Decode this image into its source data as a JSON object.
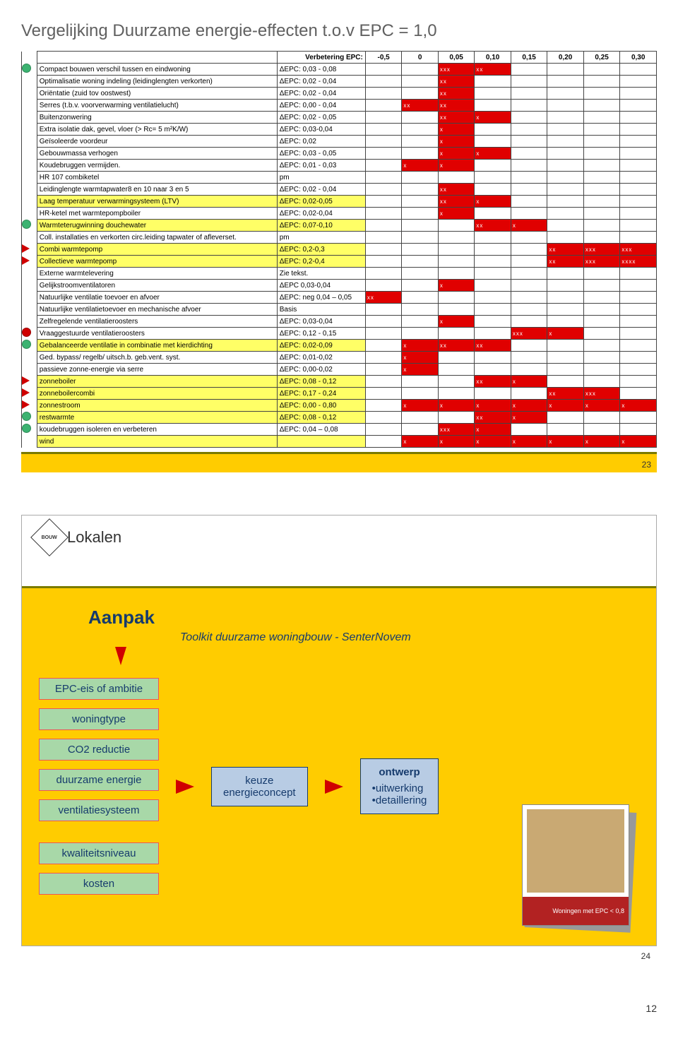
{
  "page_footer": "12",
  "slide1": {
    "title": "Vergelijking Duurzame energie-effecten t.o.v EPC = 1,0",
    "number": "23",
    "header_label": "Verbetering EPC:",
    "columns": [
      "-0,5",
      "0",
      "0,05",
      "0,10",
      "0,15",
      "0,20",
      "0,25",
      "0,30"
    ],
    "pink_col_index": 0,
    "rows": [
      {
        "marker": "green",
        "highlight": false,
        "desc": "Compact bouwen verschil tussen en eindwoning",
        "delta": "ΔEPC: 0,03 - 0,08",
        "bars": [
          0,
          0,
          3,
          2,
          0,
          0,
          0,
          0
        ]
      },
      {
        "marker": "",
        "highlight": false,
        "desc": "Optimalisatie woning indeling (leidinglengten verkorten)",
        "delta": "ΔEPC: 0,02 - 0,04",
        "bars": [
          0,
          0,
          2,
          0,
          0,
          0,
          0,
          0
        ]
      },
      {
        "marker": "",
        "highlight": false,
        "desc": "Oriëntatie (zuid tov oostwest)",
        "delta": "ΔEPC: 0,02 - 0,04",
        "bars": [
          0,
          0,
          2,
          0,
          0,
          0,
          0,
          0
        ]
      },
      {
        "marker": "",
        "highlight": false,
        "desc": "Serres (t.b.v. voorverwarming ventilatielucht)",
        "delta": "ΔEPC: 0,00 - 0,04",
        "bars": [
          0,
          2,
          2,
          0,
          0,
          0,
          0,
          0
        ]
      },
      {
        "marker": "",
        "highlight": false,
        "desc": "Buitenzonwering",
        "delta": "ΔEPC: 0,02 - 0,05",
        "bars": [
          0,
          0,
          2,
          1,
          0,
          0,
          0,
          0
        ]
      },
      {
        "marker": "",
        "highlight": false,
        "desc": "Extra isolatie dak, gevel, vloer (> Rc= 5 m²K/W)",
        "delta": "ΔEPC: 0,03-0,04",
        "bars": [
          0,
          0,
          1,
          0,
          0,
          0,
          0,
          0
        ]
      },
      {
        "marker": "",
        "highlight": false,
        "desc": "Geïsoleerde voordeur",
        "delta": "ΔEPC: 0,02",
        "bars": [
          0,
          0,
          1,
          0,
          0,
          0,
          0,
          0
        ]
      },
      {
        "marker": "",
        "highlight": false,
        "desc": "Gebouwmassa verhogen",
        "delta": "ΔEPC: 0,03 - 0,05",
        "bars": [
          0,
          0,
          1,
          1,
          0,
          0,
          0,
          0
        ]
      },
      {
        "marker": "",
        "highlight": false,
        "desc": "Koudebruggen vermijden.",
        "delta": "ΔEPC: 0,01 - 0,03",
        "bars": [
          0,
          1,
          1,
          0,
          0,
          0,
          0,
          0
        ]
      },
      {
        "marker": "",
        "highlight": false,
        "desc": "HR 107 combiketel",
        "delta": "pm",
        "bars": [
          0,
          0,
          0,
          0,
          0,
          0,
          0,
          0
        ]
      },
      {
        "marker": "",
        "highlight": false,
        "desc": "Leidinglengte warmtapwater8 en 10 naar 3 en 5",
        "delta": "ΔEPC: 0,02 - 0,04",
        "bars": [
          0,
          0,
          2,
          0,
          0,
          0,
          0,
          0
        ]
      },
      {
        "marker": "",
        "highlight": true,
        "desc": "Laag temperatuur verwarmingsysteem (LTV)",
        "delta": "ΔEPC: 0,02-0,05",
        "bars": [
          0,
          0,
          2,
          1,
          0,
          0,
          0,
          0
        ]
      },
      {
        "marker": "",
        "highlight": false,
        "desc": "HR-ketel met warmtepompboiler",
        "delta": "ΔEPC: 0,02-0,04",
        "bars": [
          0,
          0,
          1,
          0,
          0,
          0,
          0,
          0
        ]
      },
      {
        "marker": "green",
        "highlight": true,
        "desc": "Warmteterugwinning douchewater",
        "delta": "ΔEPC: 0,07-0,10",
        "bars": [
          0,
          0,
          0,
          2,
          1,
          0,
          0,
          0
        ]
      },
      {
        "marker": "",
        "highlight": false,
        "desc": "Coll. installaties en verkorten circ.leiding tapwater of afleverset.",
        "delta": "pm",
        "bars": [
          0,
          0,
          0,
          0,
          0,
          0,
          0,
          0
        ]
      },
      {
        "marker": "arrow",
        "highlight": true,
        "desc": "Combi warmtepomp",
        "delta": "ΔEPC: 0,2-0,3",
        "bars": [
          0,
          0,
          0,
          0,
          0,
          2,
          3,
          3
        ]
      },
      {
        "marker": "arrow",
        "highlight": true,
        "desc": "Collectieve warmtepomp",
        "delta": "ΔEPC: 0,2-0,4",
        "bars": [
          0,
          0,
          0,
          0,
          0,
          2,
          3,
          4
        ]
      },
      {
        "marker": "",
        "highlight": false,
        "desc": "Externe warmtelevering",
        "delta": "Zie tekst.",
        "bars": [
          0,
          0,
          0,
          0,
          0,
          0,
          0,
          0
        ]
      },
      {
        "marker": "",
        "highlight": false,
        "desc": "Gelijkstroomventilatoren",
        "delta": "ΔEPC 0,03-0,04",
        "bars": [
          0,
          0,
          1,
          0,
          0,
          0,
          0,
          0
        ]
      },
      {
        "marker": "",
        "highlight": false,
        "desc": "Natuurlijke ventilatie toevoer en afvoer",
        "delta": "ΔEPC: neg 0,04 – 0,05",
        "bars": [
          2,
          0,
          0,
          0,
          0,
          0,
          0,
          0
        ]
      },
      {
        "marker": "",
        "highlight": false,
        "desc": "Natuurlijke ventilatietoevoer en mechanische afvoer",
        "delta": "Basis",
        "bars": [
          0,
          0,
          0,
          0,
          0,
          0,
          0,
          0
        ]
      },
      {
        "marker": "",
        "highlight": false,
        "desc": "Zelfregelende ventilatieroosters",
        "delta": "ΔEPC: 0,03-0,04",
        "bars": [
          0,
          0,
          1,
          0,
          0,
          0,
          0,
          0
        ]
      },
      {
        "marker": "red",
        "highlight": false,
        "desc": "Vraaggestuurde ventilatieroosters",
        "delta": "ΔEPC: 0,12 - 0,15",
        "bars": [
          0,
          0,
          0,
          0,
          3,
          1,
          0,
          0
        ]
      },
      {
        "marker": "green",
        "highlight": true,
        "desc": "Gebalanceerde ventilatie in combinatie met kierdichting",
        "delta": "ΔEPC: 0,02-0,09",
        "bars": [
          0,
          1,
          2,
          2,
          0,
          0,
          0,
          0
        ]
      },
      {
        "marker": "",
        "highlight": false,
        "desc": "Ged. bypass/ regelb/ uitsch.b. geb.vent. syst.",
        "delta": "ΔEPC: 0,01-0,02",
        "bars": [
          0,
          1,
          0,
          0,
          0,
          0,
          0,
          0
        ]
      },
      {
        "marker": "",
        "highlight": false,
        "desc": "passieve zonne-energie via serre",
        "delta": "ΔEPC: 0,00-0,02",
        "bars": [
          0,
          1,
          0,
          0,
          0,
          0,
          0,
          0
        ]
      },
      {
        "marker": "arrow",
        "highlight": true,
        "desc": "zonneboiler",
        "delta": "ΔEPC: 0,08 - 0,12",
        "bars": [
          0,
          0,
          0,
          2,
          1,
          0,
          0,
          0
        ]
      },
      {
        "marker": "arrow",
        "highlight": true,
        "desc": "zonneboilercombi",
        "delta": "ΔEPC: 0,17 - 0,24",
        "bars": [
          0,
          0,
          0,
          0,
          0,
          2,
          3,
          0
        ]
      },
      {
        "marker": "arrow",
        "highlight": true,
        "desc": "zonnestroom",
        "delta": "ΔEPC: 0,00 - 0,80",
        "bars": [
          0,
          1,
          1,
          1,
          1,
          1,
          1,
          1
        ]
      },
      {
        "marker": "green",
        "highlight": true,
        "desc": "restwarmte",
        "delta": "ΔEPC: 0,08 - 0,12",
        "bars": [
          0,
          0,
          0,
          2,
          1,
          0,
          0,
          0
        ]
      },
      {
        "marker": "green",
        "highlight": false,
        "desc": "koudebruggen isoleren en verbeteren",
        "delta": "ΔEPC: 0,04 – 0,08",
        "bars": [
          0,
          0,
          3,
          1,
          0,
          0,
          0,
          0
        ]
      },
      {
        "marker": "",
        "highlight": true,
        "desc": "wind",
        "delta": "",
        "bars": [
          0,
          1,
          1,
          1,
          1,
          1,
          1,
          1
        ]
      }
    ]
  },
  "slide2": {
    "number": "24",
    "logo_inner": "BOUW",
    "logo_text": "Lokalen",
    "title": "Aanpak",
    "subtitle": "Toolkit duurzame woningbouw - SenterNovem",
    "left_boxes": [
      "EPC-eis of ambitie",
      "woningtype",
      "CO2 reductie",
      "duurzame energie",
      "ventilatiesysteem",
      "kwaliteitsniveau",
      "kosten"
    ],
    "mid_box_l1": "keuze",
    "mid_box_l2": "energieconcept",
    "right_box_title": "ontwerp",
    "right_box_b1": "•uitwerking",
    "right_box_b2": "•detaillering",
    "brochure_caption": "Woningen met EPC < 0,8"
  }
}
